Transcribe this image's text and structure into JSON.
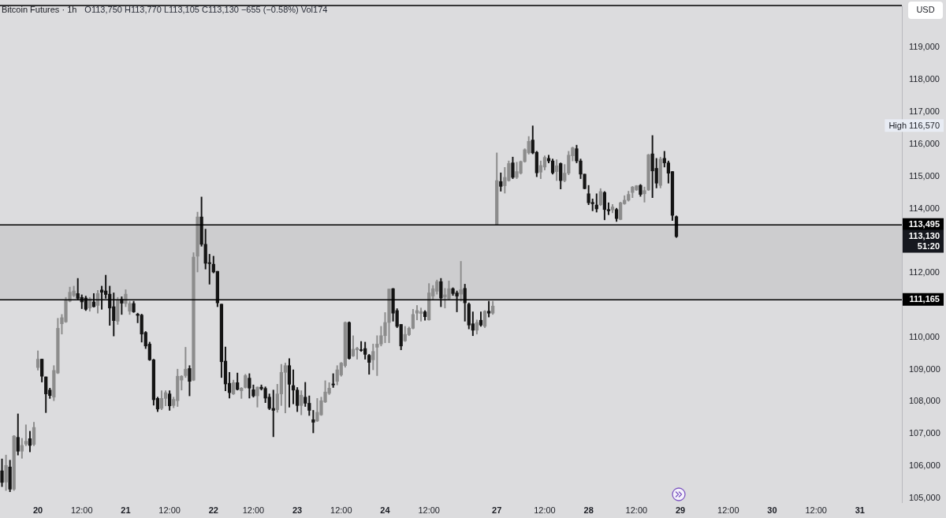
{
  "chart_data": {
    "type": "candlestick",
    "title": "Bitcoin Futures · 1h",
    "subtitle": "O113,750 H113,770 L113,105 C113,130 −655 (−0.58%) Vol174",
    "ylabel": "USD",
    "categories": [
      null,
      null,
      null,
      null,
      null,
      null,
      null,
      null,
      null,
      "20",
      null,
      null,
      null,
      null,
      null,
      null,
      null,
      null,
      null,
      null,
      "12:00",
      null,
      null,
      null,
      null,
      null,
      null,
      null,
      null,
      null,
      null,
      "21",
      null,
      null,
      null,
      null,
      null,
      null,
      null,
      null,
      null,
      null,
      "12:00",
      null,
      null,
      null,
      null,
      null,
      null,
      null,
      null,
      null,
      null,
      "22",
      null,
      null,
      null,
      null,
      null,
      null,
      null,
      null,
      null,
      "12:00",
      null,
      null,
      null,
      null,
      null,
      null,
      null,
      null,
      null,
      null,
      "23",
      null,
      null,
      null,
      null,
      null,
      null,
      null,
      null,
      null,
      null,
      "12:00",
      null,
      null,
      null,
      null,
      null,
      null,
      null,
      null,
      null,
      null,
      "24",
      null,
      null,
      null,
      null,
      null,
      null,
      null,
      null,
      null,
      null,
      "12:00",
      null,
      null,
      null,
      null,
      null,
      null,
      null,
      null,
      null,
      null,
      null,
      null,
      null,
      null,
      null,
      null,
      "27",
      null,
      null,
      null,
      null,
      null,
      null,
      null,
      null,
      null,
      null,
      null,
      "12:00",
      null,
      null,
      null,
      null,
      null,
      null,
      null,
      null,
      null,
      null,
      "28",
      null,
      null,
      null,
      null,
      null,
      null,
      null,
      null,
      null,
      null,
      null,
      "12:00",
      null,
      null,
      null,
      null,
      null,
      null,
      null,
      null,
      null,
      null,
      "29",
      null,
      null,
      null,
      null,
      null,
      null,
      null,
      null,
      null,
      null,
      null,
      "12:00",
      null,
      null,
      null,
      null,
      null,
      null,
      null,
      null,
      null,
      null,
      "30",
      null,
      null,
      null,
      null,
      null,
      null,
      null,
      null,
      null,
      null,
      "12:00",
      null,
      null,
      null,
      null,
      null,
      null,
      null,
      null,
      null,
      null,
      "31",
      null,
      null,
      null,
      null,
      null,
      null,
      null,
      null,
      null,
      null
    ],
    "ohlc": [
      [
        105850,
        106220,
        105360,
        105490
      ],
      [
        105500,
        106340,
        105240,
        106020
      ],
      [
        105970,
        106180,
        105200,
        105280
      ],
      [
        105280,
        106950,
        105240,
        106930
      ],
      [
        106890,
        107620,
        106340,
        106460
      ],
      [
        106460,
        106860,
        106240,
        106640
      ],
      [
        106680,
        107280,
        106630,
        106770
      ],
      [
        106850,
        107080,
        106440,
        106640
      ],
      [
        106670,
        107360,
        106630,
        107200
      ],
      [
        109060,
        109580,
        108980,
        109320
      ],
      [
        109320,
        109320,
        108610,
        108790
      ],
      [
        108770,
        108770,
        107660,
        108240
      ],
      [
        108360,
        108420,
        108100,
        108190
      ],
      [
        108140,
        109120,
        108030,
        108970
      ],
      [
        108890,
        110590,
        108870,
        110280
      ],
      [
        110420,
        110710,
        110100,
        110610
      ],
      [
        110480,
        111240,
        110460,
        111140
      ],
      [
        111120,
        111560,
        111100,
        111400
      ],
      [
        111300,
        111590,
        111260,
        111440
      ],
      [
        111360,
        111830,
        111180,
        111210
      ],
      [
        111240,
        111320,
        110890,
        111100
      ],
      [
        111220,
        111280,
        110830,
        110870
      ],
      [
        110910,
        111240,
        110810,
        111200
      ],
      [
        111100,
        111360,
        110940,
        110950
      ],
      [
        110990,
        111460,
        110750,
        111360
      ],
      [
        111470,
        111590,
        110870,
        111400
      ],
      [
        111440,
        111930,
        111210,
        111330
      ],
      [
        111340,
        111590,
        110370,
        110910
      ],
      [
        110950,
        111380,
        110040,
        110520
      ],
      [
        110500,
        111240,
        110400,
        111160
      ],
      [
        111180,
        111260,
        110710,
        111060
      ],
      [
        111050,
        111480,
        110950,
        111340
      ],
      [
        110810,
        111120,
        110710,
        111050
      ],
      [
        111050,
        111120,
        110770,
        110790
      ],
      [
        110720,
        110750,
        110450,
        110680
      ],
      [
        110690,
        110720,
        109850,
        110100
      ],
      [
        110150,
        110180,
        109650,
        109730
      ],
      [
        109790,
        109850,
        109280,
        109300
      ],
      [
        109300,
        109320,
        107890,
        108060
      ],
      [
        108100,
        108140,
        107690,
        107770
      ],
      [
        107790,
        108340,
        107750,
        108100
      ],
      [
        108100,
        108340,
        107870,
        108280
      ],
      [
        108240,
        108340,
        107730,
        107870
      ],
      [
        107880,
        108140,
        107810,
        108070
      ],
      [
        108030,
        109010,
        107850,
        108790
      ],
      [
        108670,
        108810,
        108360,
        108790
      ],
      [
        108810,
        109690,
        108750,
        109010
      ],
      [
        109030,
        109120,
        108180,
        108630
      ],
      [
        108670,
        112630,
        108650,
        112490
      ],
      [
        112520,
        113890,
        112030,
        113740
      ],
      [
        113740,
        114360,
        112830,
        112890
      ],
      [
        112890,
        113360,
        112120,
        112300
      ],
      [
        112320,
        112580,
        111650,
        112290
      ],
      [
        112270,
        112520,
        112000,
        112030
      ],
      [
        112050,
        112050,
        110950,
        111070
      ],
      [
        111030,
        111030,
        108750,
        109240
      ],
      [
        109260,
        109700,
        108340,
        108550
      ],
      [
        108570,
        108910,
        108110,
        108280
      ],
      [
        108240,
        108670,
        108220,
        108590
      ],
      [
        108590,
        108890,
        108360,
        108380
      ],
      [
        108340,
        108440,
        108100,
        108420
      ],
      [
        108440,
        108850,
        108420,
        108810
      ],
      [
        108730,
        108870,
        108110,
        108420
      ],
      [
        108370,
        108520,
        108140,
        108180
      ],
      [
        108180,
        108460,
        107830,
        108450
      ],
      [
        108450,
        108520,
        108360,
        108400
      ],
      [
        108410,
        108460,
        107970,
        108110
      ],
      [
        108140,
        108240,
        107750,
        107790
      ],
      [
        107790,
        108360,
        106910,
        107730
      ],
      [
        107750,
        108540,
        107670,
        108240
      ],
      [
        108240,
        109160,
        107880,
        108910
      ],
      [
        108910,
        109200,
        107650,
        109120
      ],
      [
        109120,
        109340,
        107830,
        108540
      ],
      [
        108500,
        108990,
        107930,
        108360
      ],
      [
        108360,
        108440,
        107690,
        107880
      ],
      [
        107880,
        108340,
        107590,
        108200
      ],
      [
        108140,
        108600,
        107850,
        107950
      ],
      [
        107950,
        108180,
        107570,
        107730
      ],
      [
        107440,
        107730,
        107030,
        107360
      ],
      [
        107400,
        108100,
        107380,
        107670
      ],
      [
        107590,
        108140,
        107570,
        108030
      ],
      [
        107990,
        108650,
        107970,
        108300
      ],
      [
        108260,
        108590,
        108220,
        108420
      ],
      [
        108550,
        108870,
        108440,
        108520
      ],
      [
        108630,
        109120,
        108520,
        108990
      ],
      [
        108830,
        109220,
        108790,
        109200
      ],
      [
        109120,
        110480,
        109070,
        110460
      ],
      [
        110460,
        110480,
        109320,
        109340
      ],
      [
        109420,
        110050,
        109400,
        109630
      ],
      [
        109610,
        109690,
        109320,
        109660
      ],
      [
        109610,
        109870,
        109560,
        109590
      ],
      [
        109650,
        109850,
        109320,
        109470
      ],
      [
        109440,
        109470,
        108850,
        109220
      ],
      [
        109300,
        109790,
        108990,
        109560
      ],
      [
        109690,
        110050,
        108810,
        109790
      ],
      [
        109790,
        110340,
        109730,
        110050
      ],
      [
        110050,
        110770,
        109830,
        110460
      ],
      [
        110460,
        111500,
        109830,
        111500
      ],
      [
        111510,
        111520,
        110500,
        110750
      ],
      [
        110830,
        110890,
        110300,
        110340
      ],
      [
        110400,
        110400,
        109610,
        109730
      ],
      [
        109890,
        110340,
        109870,
        110090
      ],
      [
        110080,
        110320,
        110050,
        110280
      ],
      [
        110280,
        110870,
        110260,
        110710
      ],
      [
        110750,
        110990,
        110540,
        110830
      ],
      [
        110740,
        110910,
        110500,
        110800
      ],
      [
        110790,
        110830,
        110530,
        110640
      ],
      [
        110540,
        111670,
        110530,
        111380
      ],
      [
        111280,
        111610,
        111160,
        111510
      ],
      [
        111430,
        111780,
        111340,
        111730
      ],
      [
        111730,
        111830,
        110950,
        111220
      ],
      [
        111250,
        111520,
        110910,
        111320
      ],
      [
        111200,
        111750,
        111180,
        111510
      ],
      [
        111510,
        111540,
        111300,
        111360
      ],
      [
        111380,
        111440,
        110790,
        111280
      ],
      [
        111340,
        112360,
        111120,
        111480
      ],
      [
        111520,
        111650,
        110500,
        111070
      ],
      [
        111030,
        111070,
        110260,
        110380
      ],
      [
        110420,
        110790,
        110050,
        110220
      ],
      [
        110220,
        110540,
        110100,
        110460
      ],
      [
        110530,
        110790,
        110340,
        110380
      ],
      [
        110340,
        110830,
        110300,
        110810
      ],
      [
        110810,
        111120,
        110630,
        110750
      ],
      [
        110750,
        111120,
        110710,
        110970
      ],
      [
        113495,
        115730,
        113495,
        114870
      ],
      [
        114840,
        115110,
        114540,
        114690
      ],
      [
        114710,
        115280,
        114480,
        114970
      ],
      [
        114870,
        115480,
        114850,
        115400
      ],
      [
        115420,
        115600,
        114930,
        114970
      ],
      [
        114970,
        115440,
        114930,
        115150
      ],
      [
        115100,
        115480,
        115070,
        115460
      ],
      [
        115460,
        115860,
        115440,
        115830
      ],
      [
        115730,
        116240,
        115690,
        116090
      ],
      [
        116130,
        116570,
        115700,
        115730
      ],
      [
        115750,
        115780,
        114990,
        115110
      ],
      [
        115130,
        115480,
        114930,
        115340
      ],
      [
        115290,
        115640,
        115200,
        115590
      ],
      [
        115560,
        115660,
        115420,
        115480
      ],
      [
        115480,
        115540,
        115070,
        115110
      ],
      [
        115150,
        115520,
        114870,
        115330
      ],
      [
        115400,
        115420,
        114610,
        114870
      ],
      [
        114870,
        115370,
        114830,
        115100
      ],
      [
        115100,
        115780,
        115050,
        115660
      ],
      [
        115640,
        115910,
        115480,
        115890
      ],
      [
        115860,
        115970,
        115420,
        115480
      ],
      [
        115480,
        115540,
        114930,
        115070
      ],
      [
        115070,
        115070,
        114610,
        114620
      ],
      [
        114460,
        114720,
        114120,
        114180
      ],
      [
        114190,
        114300,
        113930,
        114150
      ],
      [
        114110,
        114460,
        113890,
        113990
      ],
      [
        114120,
        114620,
        114090,
        114530
      ],
      [
        114500,
        114530,
        113650,
        113970
      ],
      [
        113970,
        114180,
        113810,
        113930
      ],
      [
        113960,
        114130,
        113870,
        114050
      ],
      [
        113970,
        114010,
        113600,
        113690
      ],
      [
        113660,
        114200,
        113650,
        114180
      ],
      [
        114150,
        114400,
        114130,
        114260
      ],
      [
        114260,
        114540,
        114230,
        114440
      ],
      [
        114500,
        114690,
        114340,
        114670
      ],
      [
        114580,
        114720,
        114560,
        114710
      ],
      [
        114720,
        114750,
        114380,
        114440
      ],
      [
        114460,
        114670,
        114200,
        114560
      ],
      [
        114580,
        115690,
        114560,
        115670
      ],
      [
        115700,
        116270,
        114340,
        115170
      ],
      [
        115250,
        115560,
        114640,
        114790
      ],
      [
        114720,
        115600,
        114640,
        115540
      ],
      [
        115560,
        115780,
        115290,
        115420
      ],
      [
        115420,
        115480,
        114790,
        115100
      ],
      [
        115150,
        115150,
        113630,
        113790
      ],
      [
        113750,
        113770,
        113105,
        113130
      ],
      null,
      null,
      null,
      null,
      null,
      null,
      null,
      null,
      null,
      null,
      null,
      null,
      null,
      null,
      null,
      null,
      null,
      null,
      null,
      null,
      null,
      null,
      null,
      null,
      null,
      null,
      null,
      null,
      null,
      null,
      null,
      null,
      null,
      null,
      null,
      null,
      null,
      null,
      null,
      null,
      null,
      null,
      null,
      null,
      null,
      null,
      null,
      null,
      null,
      null,
      null,
      null,
      null,
      null,
      null,
      null
    ],
    "colors": [
      "#141414",
      "#8c8c8c",
      "#141414",
      "#8c8c8c",
      "#141414",
      "#8c8c8c",
      "#8c8c8c",
      "#141414",
      "#8c8c8c",
      "#8c8c8c",
      "#141414",
      "#141414",
      "#141414",
      "#8c8c8c",
      "#8c8c8c",
      "#8c8c8c",
      "#8c8c8c",
      "#8c8c8c",
      "#8c8c8c",
      "#141414",
      "#141414",
      "#141414",
      "#8c8c8c",
      "#141414",
      "#8c8c8c",
      "#141414",
      "#141414",
      "#141414",
      "#141414",
      "#8c8c8c",
      "#141414",
      "#8c8c8c",
      "#8c8c8c",
      "#141414",
      "#141414",
      "#141414",
      "#141414",
      "#141414",
      "#141414",
      "#141414",
      "#8c8c8c",
      "#8c8c8c",
      "#141414",
      "#8c8c8c",
      "#8c8c8c",
      "#8c8c8c",
      "#8c8c8c",
      "#141414",
      "#8c8c8c",
      "#8c8c8c",
      "#141414",
      "#141414",
      "#141414",
      "#141414",
      "#141414",
      "#141414",
      "#141414",
      "#141414",
      "#8c8c8c",
      "#141414",
      "#8c8c8c",
      "#8c8c8c",
      "#141414",
      "#141414",
      "#8c8c8c",
      "#141414",
      "#141414",
      "#141414",
      "#141414",
      "#8c8c8c",
      "#8c8c8c",
      "#8c8c8c",
      "#141414",
      "#141414",
      "#141414",
      "#8c8c8c",
      "#141414",
      "#141414",
      "#141414",
      "#8c8c8c",
      "#8c8c8c",
      "#8c8c8c",
      "#8c8c8c",
      "#141414",
      "#8c8c8c",
      "#8c8c8c",
      "#8c8c8c",
      "#141414",
      "#8c8c8c",
      "#8c8c8c",
      "#141414",
      "#141414",
      "#141414",
      "#8c8c8c",
      "#8c8c8c",
      "#8c8c8c",
      "#8c8c8c",
      "#8c8c8c",
      "#141414",
      "#141414",
      "#141414",
      "#8c8c8c",
      "#8c8c8c",
      "#8c8c8c",
      "#8c8c8c",
      "#8c8c8c",
      "#141414",
      "#8c8c8c",
      "#8c8c8c",
      "#8c8c8c",
      "#141414",
      "#8c8c8c",
      "#8c8c8c",
      "#141414",
      "#141414",
      "#8c8c8c",
      "#141414",
      "#141414",
      "#141414",
      "#8c8c8c",
      "#141414",
      "#8c8c8c",
      "#141414",
      "#8c8c8c",
      "#8c8c8c",
      "#141414",
      "#8c8c8c",
      "#8c8c8c",
      "#141414",
      "#8c8c8c",
      "#8c8c8c",
      "#8c8c8c",
      "#8c8c8c",
      "#141414",
      "#141414",
      "#8c8c8c",
      "#8c8c8c",
      "#141414",
      "#141414",
      "#8c8c8c",
      "#141414",
      "#8c8c8c",
      "#8c8c8c",
      "#8c8c8c",
      "#141414",
      "#141414",
      "#141414",
      "#141414",
      "#141414",
      "#141414",
      "#8c8c8c",
      "#141414",
      "#141414",
      "#8c8c8c",
      "#141414",
      "#8c8c8c",
      "#8c8c8c",
      "#8c8c8c",
      "#8c8c8c",
      "#8c8c8c",
      "#141414",
      "#8c8c8c",
      "#8c8c8c",
      "#141414",
      "#141414",
      "#8c8c8c",
      "#141414",
      "#141414",
      "#141414",
      "#141414",
      null,
      null,
      null,
      null,
      null,
      null,
      null,
      null,
      null,
      null,
      null,
      null,
      null,
      null,
      null,
      null,
      null,
      null,
      null,
      null,
      null,
      null,
      null,
      null,
      null,
      null,
      null,
      null,
      null,
      null,
      null,
      null,
      null,
      null,
      null,
      null,
      null,
      null,
      null,
      null,
      null,
      null,
      null,
      null,
      null,
      null,
      null,
      null,
      null,
      null,
      null,
      null,
      null,
      null,
      null,
      null
    ],
    "ylim": [
      104850,
      120310
    ],
    "yticks": [
      {
        "value": 105000,
        "label": "105,000"
      },
      {
        "value": 106000,
        "label": "106,000"
      },
      {
        "value": 107000,
        "label": "107,000"
      },
      {
        "value": 108000,
        "label": "108,000"
      },
      {
        "value": 109000,
        "label": "109,000"
      },
      {
        "value": 110000,
        "label": "110,000"
      },
      {
        "value": 112000,
        "label": "112,000"
      },
      {
        "value": 114000,
        "label": "114,000"
      },
      {
        "value": 115000,
        "label": "115,000"
      },
      {
        "value": 116000,
        "label": "116,000"
      },
      {
        "value": 117000,
        "label": "117,000"
      },
      {
        "value": 118000,
        "label": "118,000"
      },
      {
        "value": 119000,
        "label": "119,000"
      }
    ],
    "bands": [
      {
        "axis": "y",
        "from": 111165,
        "to": 113495,
        "color": "#cdcdcf"
      }
    ],
    "ref_lines": [
      {
        "axis": "y",
        "value": 113495,
        "label": "113,495",
        "color": "#000000"
      },
      {
        "axis": "y",
        "value": 111165,
        "label": "111,165",
        "color": "#000000"
      }
    ],
    "annotations": [
      "High 116,570",
      "113,130\n51:20"
    ],
    "legend": false,
    "grid": false
  }
}
